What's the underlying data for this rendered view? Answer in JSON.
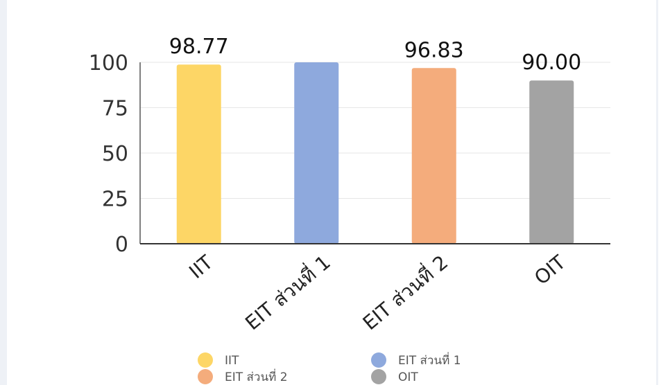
{
  "chart_data": {
    "type": "bar",
    "categories": [
      "IIT",
      "EIT ส่วนที่ 1",
      "EIT ส่วนที่ 2",
      "OIT"
    ],
    "values": [
      98.77,
      100,
      96.83,
      90.0
    ],
    "data_labels": [
      "98.77",
      "",
      "96.83",
      "90.00"
    ],
    "colors": [
      "#fdd666",
      "#8ea9dd",
      "#f4ac7c",
      "#a3a3a3"
    ],
    "ylim": [
      0,
      100
    ],
    "yticks": [
      0,
      25,
      50,
      75,
      100
    ],
    "grid": true,
    "legend_position": "bottom",
    "legend": [
      "IIT",
      "EIT ส่วนที่ 1",
      "EIT ส่วนที่ 2",
      "OIT"
    ]
  }
}
